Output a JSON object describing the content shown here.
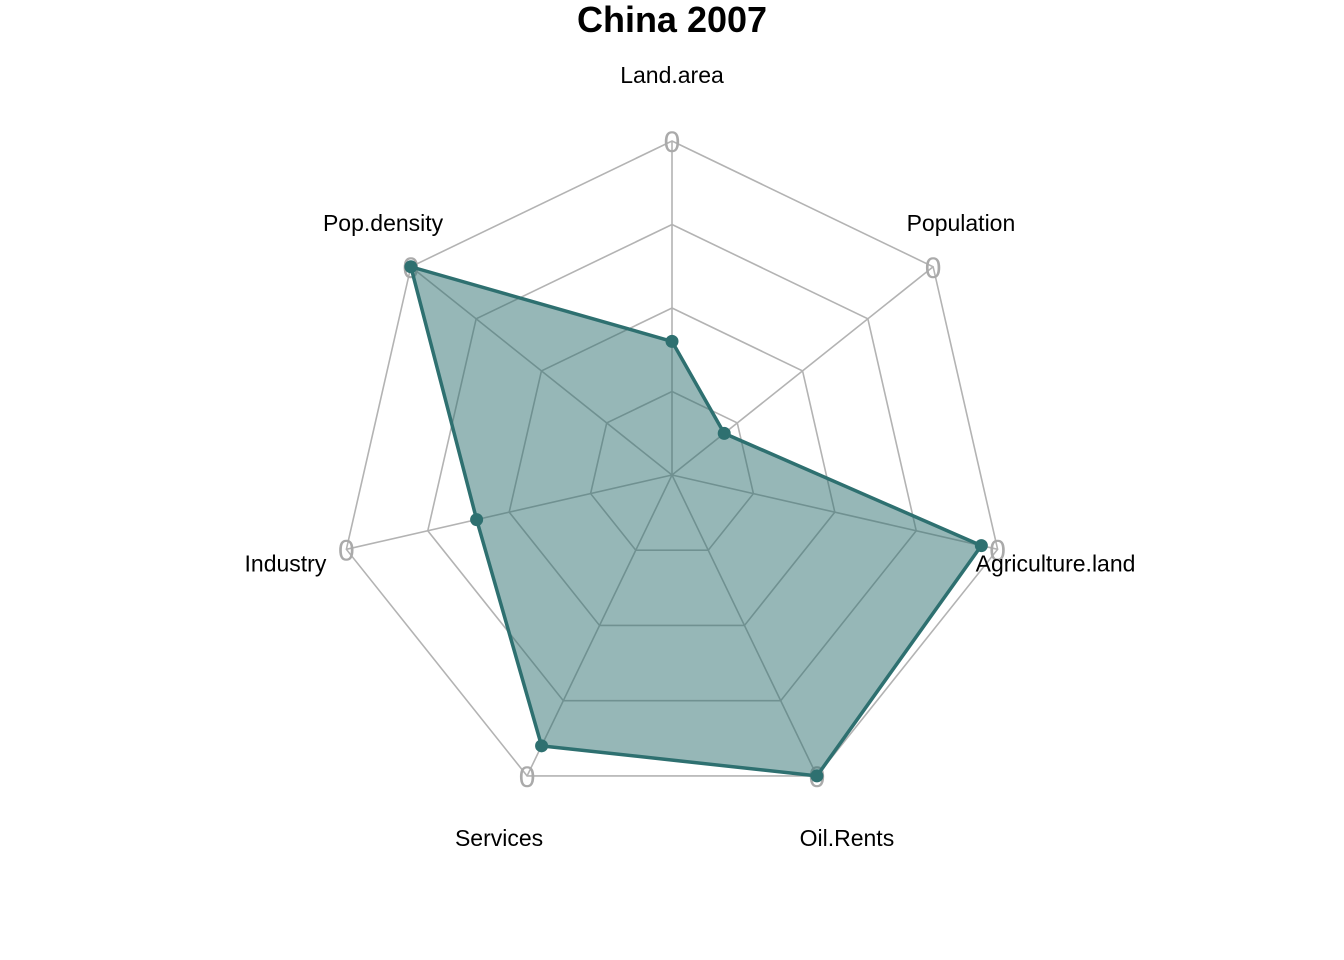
{
  "chart_data": {
    "type": "radar",
    "title": "China 2007",
    "axes": [
      "Land.area",
      "Population",
      "Agriculture.land",
      "Oil.Rents",
      "Services",
      "Industry",
      "Pop.density"
    ],
    "axis_tick_label": "0",
    "series": [
      {
        "values": [
          0.4,
          0.2,
          0.95,
          1.0,
          0.9,
          0.6,
          1.0
        ],
        "color": "#2e7070"
      }
    ],
    "rlim": [
      0,
      1
    ],
    "grid_levels": 4,
    "grid": true,
    "legend": "none"
  }
}
